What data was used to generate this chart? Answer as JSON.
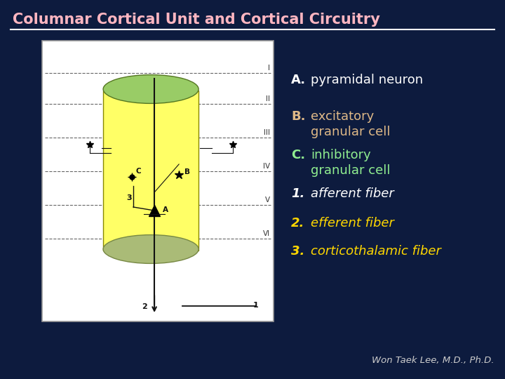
{
  "title": "Columnar Cortical Unit and Cortical Circuitry",
  "title_color": "#FFB6C1",
  "bg_color": "#0d1b3e",
  "line_color": "#ffffff",
  "diagram_bg": "#ffffff",
  "cyl_yellow": "#FFFF66",
  "cyl_top_green": "#99cc66",
  "cyl_bot_green": "#aabb77",
  "layer_labels": [
    "I",
    "II",
    "III",
    "IV",
    "V",
    "VI"
  ],
  "A_color": "#ffffff",
  "B_color": "#DEB887",
  "C_color": "#90EE90",
  "num_color": "#ffffff",
  "gold_color": "#FFD700",
  "attribution": "Won Taek Lee, M.D., Ph.D.",
  "attribution_color": "#cccccc",
  "right_items": [
    {
      "label": "A.",
      "line1": "pyramidal neuron",
      "line2": "",
      "lcolor": "#ffffff",
      "tcolor": "#ffffff"
    },
    {
      "label": "B.",
      "line1": "excitatory",
      "line2": "   granular cell",
      "lcolor": "#DEB887",
      "tcolor": "#DEB887"
    },
    {
      "label": "C.",
      "line1": "inhibitory",
      "line2": "   granular cell",
      "lcolor": "#90EE90",
      "tcolor": "#90EE90"
    }
  ],
  "num_items": [
    {
      "label": "1.",
      "text": "afferent fiber",
      "color": "#ffffff"
    },
    {
      "label": "2.",
      "text": "efferent fiber",
      "color": "#FFD700"
    },
    {
      "label": "3.",
      "text": "corticothalamic fiber",
      "color": "#FFD700"
    }
  ]
}
